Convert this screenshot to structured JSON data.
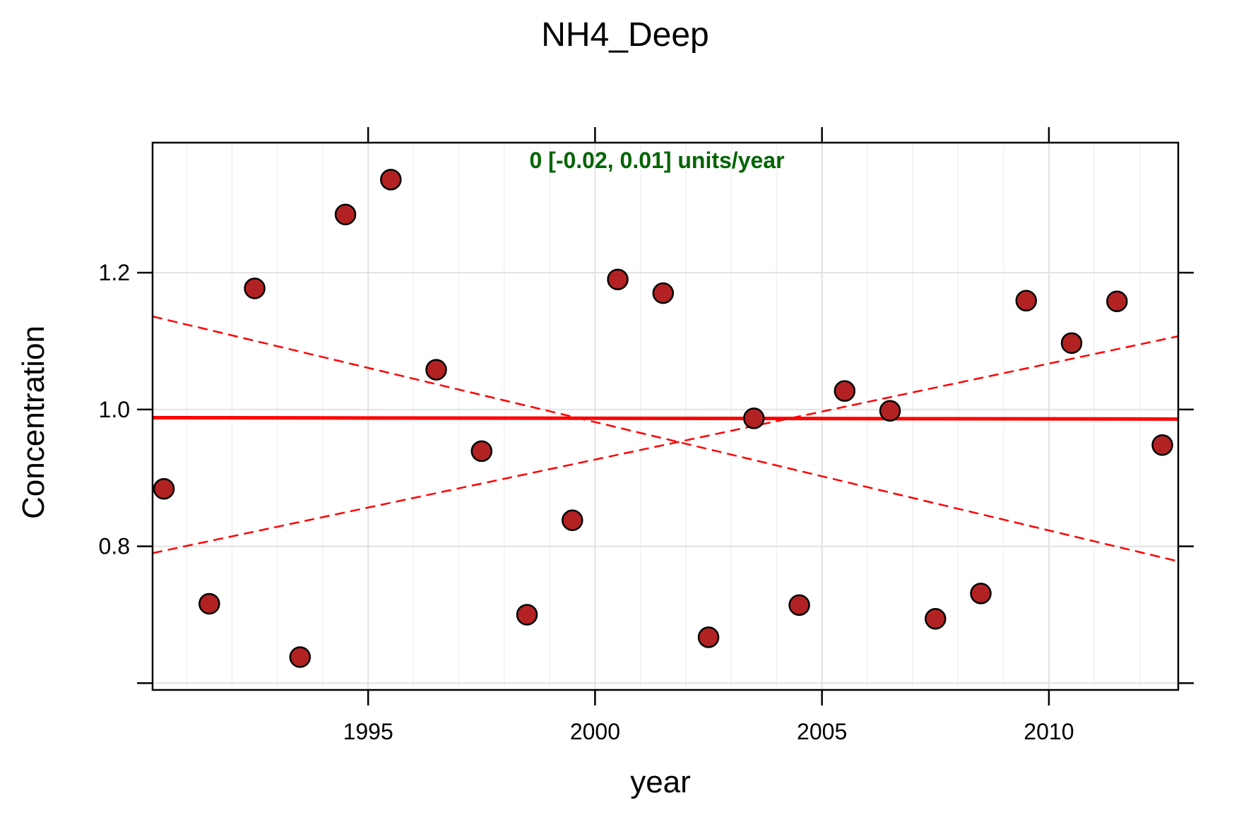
{
  "chart_data": {
    "type": "scatter",
    "title": "NH4_Deep",
    "xlabel": "year",
    "ylabel": "Concentration",
    "annotation": "0 [-0.02, 0.01] units/year",
    "xlim": [
      1990.25,
      2012.85
    ],
    "ylim": [
      0.59,
      1.39
    ],
    "x_ticks": [
      1995,
      2000,
      2005,
      2010
    ],
    "x_tick_labels": [
      "1995",
      "2000",
      "2005",
      "2010"
    ],
    "y_ticks": [
      0.6,
      0.8,
      1.0,
      1.2
    ],
    "y_tick_labels": [
      "",
      "0.8",
      "1.0",
      "1.2"
    ],
    "grid": true,
    "legend": "none",
    "points": {
      "x": [
        1990.5,
        1991.5,
        1992.5,
        1993.5,
        1994.5,
        1995.5,
        1996.5,
        1997.5,
        1998.5,
        1999.5,
        2000.5,
        2001.5,
        2002.5,
        2003.5,
        2004.5,
        2005.5,
        2006.5,
        2007.5,
        2008.5,
        2009.5,
        2010.5,
        2011.5,
        2012.5
      ],
      "y": [
        0.884,
        0.716,
        1.177,
        0.638,
        1.285,
        1.336,
        1.058,
        0.939,
        0.7,
        0.838,
        1.19,
        1.17,
        0.667,
        0.987,
        0.714,
        1.027,
        0.998,
        0.694,
        0.731,
        1.159,
        1.097,
        1.158,
        0.948
      ]
    },
    "trend": {
      "x": [
        1990.25,
        2012.85
      ],
      "y": [
        0.988,
        0.986
      ]
    },
    "upper_bound": {
      "x": [
        1990.25,
        2012.85
      ],
      "y": [
        1.136,
        0.778
      ]
    },
    "lower_bound": {
      "x": [
        1990.25,
        2012.85
      ],
      "y": [
        0.79,
        1.107
      ]
    },
    "colors": {
      "point_fill": "#b22222",
      "point_stroke": "#000000",
      "trend_line": "#ff0000",
      "annotation": "#006400",
      "grid": "#e8e8e8"
    }
  }
}
